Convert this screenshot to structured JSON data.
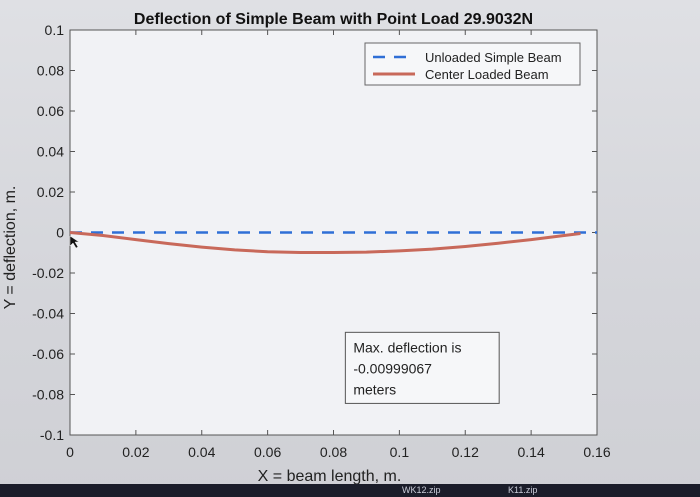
{
  "chart_data": {
    "type": "line",
    "title": "Deflection of Simple Beam with Point Load 29.9032N",
    "xlabel": "X = beam length, m.",
    "ylabel": "Y = deflection, m.",
    "xlim": [
      0,
      0.16
    ],
    "ylim": [
      -0.1,
      0.1
    ],
    "xticks": [
      {
        "value": 0,
        "label": "0"
      },
      {
        "value": 0.02,
        "label": "0.02"
      },
      {
        "value": 0.04,
        "label": "0.04"
      },
      {
        "value": 0.06,
        "label": "0.06"
      },
      {
        "value": 0.08,
        "label": "0.08"
      },
      {
        "value": 0.1,
        "label": "0.1"
      },
      {
        "value": 0.12,
        "label": "0.12"
      },
      {
        "value": 0.14,
        "label": "0.14"
      },
      {
        "value": 0.16,
        "label": "0.16"
      }
    ],
    "yticks": [
      {
        "value": 0.1,
        "label": "0.1"
      },
      {
        "value": 0.08,
        "label": "0.08"
      },
      {
        "value": 0.06,
        "label": "0.06"
      },
      {
        "value": 0.04,
        "label": "0.04"
      },
      {
        "value": 0.02,
        "label": "0.02"
      },
      {
        "value": 0,
        "label": "0"
      },
      {
        "value": -0.02,
        "label": "-0.02"
      },
      {
        "value": -0.04,
        "label": "-0.04"
      },
      {
        "value": -0.06,
        "label": "-0.06"
      },
      {
        "value": -0.08,
        "label": "-0.08"
      },
      {
        "value": -0.1,
        "label": "-0.1"
      }
    ],
    "grid": false,
    "legend_position": "top-right",
    "series": [
      {
        "name": "Unloaded Simple Beam",
        "style": "dashed",
        "color": "#2f6fd6",
        "x": [
          0,
          0.16
        ],
        "y": [
          0,
          0
        ]
      },
      {
        "name": "Center Loaded Beam",
        "style": "solid",
        "color": "#c8695a",
        "x": [
          0,
          0.01,
          0.02,
          0.03,
          0.04,
          0.05,
          0.06,
          0.07,
          0.08,
          0.09,
          0.1,
          0.11,
          0.12,
          0.13,
          0.14,
          0.15,
          0.155
        ],
        "y": [
          0,
          -0.0015,
          -0.0035,
          -0.0055,
          -0.0072,
          -0.0086,
          -0.0095,
          -0.0099,
          -0.0099,
          -0.0097,
          -0.0091,
          -0.0082,
          -0.0069,
          -0.0053,
          -0.0035,
          -0.0015,
          -0.0005
        ]
      }
    ],
    "annotation": {
      "lines": [
        "Max. deflection is",
        "-0.00999067",
        "meters"
      ],
      "x_range": [
        0.0836,
        0.1303
      ],
      "y_range": [
        -0.0844,
        -0.0493
      ]
    }
  },
  "taskbar": {
    "files": [
      "WK12.zip",
      "K11.zip"
    ]
  }
}
